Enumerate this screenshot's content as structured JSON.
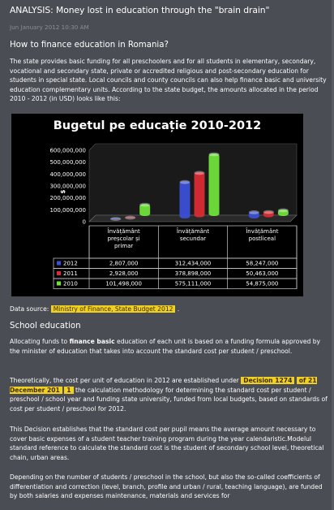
{
  "article": {
    "title": "ANALYSIS: Money lost in education through the \"brain drain\"",
    "date": "Jun January 2012 10:30 AM",
    "section1_heading": "How to finance education in Romania?",
    "section1_body": "The state provides basic funding for all preschoolers and for all students in elementary, secondary, vocational and secondary state, private or accredited religious and post-secondary education for students in special state. Local councils and county councils can also help finance basic and university education complementary units.  According to the state budget, the amounts allocated in the period 2010 - 2012 (in USD) looks like this:",
    "source_label": "Data source:",
    "source_link": "Ministry of Finance, State Budget 2012",
    "source_after": ".",
    "section2_heading": "School education",
    "s2_p1_pre": " Allocating funds to ",
    "s2_p1_bold": "finance basic",
    "s2_p1_post": " education of each unit is based on a funding formula approved by the minister of education that takes into account the standard cost per student / preschool.",
    "s2_p2_pre": "Theoretically, the cost per unit of education in 2012 are established under ",
    "s2_p2_hl1": "Decision 1274",
    "s2_p2_hl2": "of 21 December 201",
    "s2_p2_hl3": "1",
    "s2_p2_post": " the calculation methodology for determining the standard cost per student / preschool / school year and funding state university, funded from local budgets, based on standards of cost per student / preschool for 2012.",
    "s2_p3": "This Decision establishes that the standard cost per pupil means the average amount necessary to cover basic expenses of a student teacher training program during the year calendaristic.Modelul standard reference to calculate the standard cost is the student of secondary school level, theoretical chain, urban areas.",
    "s2_p4": "Depending on the number of students / preschool in the school, but also the so-called coefficients of differentiation and correction (level, branch, profile and urban / rural, teaching language), are funded by both salaries and expenses maintenance, materials and services for"
  },
  "colors": {
    "background": "#4b4d55",
    "highlight": "#f2d021",
    "series_2012": "#3b4fd6",
    "series_2011": "#d92b34",
    "series_2010": "#6fe03a"
  },
  "chart_data": {
    "type": "bar",
    "title": "Bugetul pe educație 2010-2012",
    "ylabel": "$",
    "ylim": [
      0,
      600000000
    ],
    "yticks": [
      "600,000,000",
      "500,000,000",
      "400,000,000",
      "300,000,000",
      "200,000,000",
      "100,000,000",
      "0"
    ],
    "categories": [
      "Învățământ preșcolar și primar",
      "Învățământ secundar",
      "Învățământ postliceal"
    ],
    "category_lines": [
      [
        "Învățământ",
        "preșcolar și",
        "primar"
      ],
      [
        "Învățământ",
        "secundar"
      ],
      [
        "Învățământ",
        "postliceal"
      ]
    ],
    "series": [
      {
        "name": "2012",
        "values": [
          2807000,
          312434000,
          58247000
        ],
        "labels": [
          "2,807,000",
          "312,434,000",
          "58,247,000"
        ],
        "color": "#3b4fd6"
      },
      {
        "name": "2011",
        "values": [
          2928000,
          378898000,
          50463000
        ],
        "labels": [
          "2,928,000",
          "378,898,000",
          "50,463,000"
        ],
        "color": "#d92b34"
      },
      {
        "name": "2010",
        "values": [
          101498000,
          575111000,
          54875000
        ],
        "labels": [
          "101,498,000",
          "575,111,000",
          "54,875,000"
        ],
        "color": "#6fe03a"
      }
    ],
    "legend": "table-bottom",
    "grid": false
  }
}
